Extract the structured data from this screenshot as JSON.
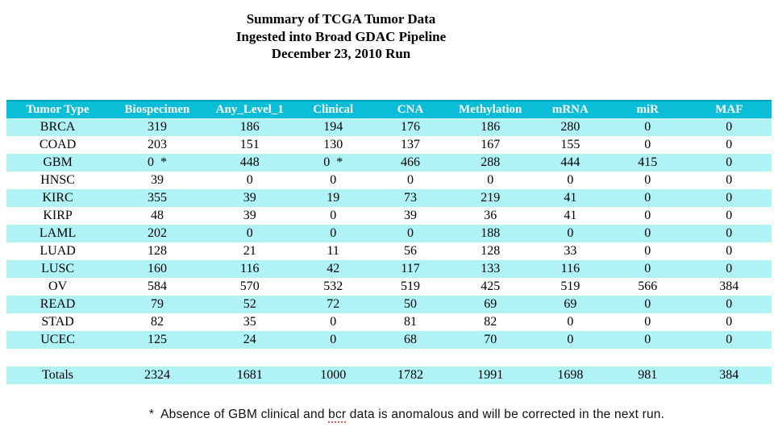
{
  "title": {
    "line1": "Summary of TCGA Tumor Data",
    "line2": "Ingested into Broad GDAC Pipeline",
    "line3": "December 23, 2010 Run"
  },
  "table": {
    "columns": [
      "Tumor Type",
      "Biospecimen",
      "Any_Level_1",
      "Clinical",
      "CNA",
      "Methylation",
      "mRNA",
      "miR",
      "MAF"
    ],
    "column_widths_pct": [
      13.4,
      12.6,
      11.6,
      10.2,
      10.0,
      10.9,
      10.0,
      10.2,
      11.1
    ],
    "rows": [
      {
        "tumor_type": "BRCA",
        "values": [
          "319",
          "186",
          "194",
          "176",
          "186",
          "280",
          "0",
          "0"
        ],
        "highlight": true
      },
      {
        "tumor_type": "COAD",
        "values": [
          "203",
          "151",
          "130",
          "137",
          "167",
          "155",
          "0",
          "0"
        ],
        "highlight": false
      },
      {
        "tumor_type": "GBM",
        "values": [
          "0  *",
          "448",
          "0  *",
          "466",
          "288",
          "444",
          "415",
          "0"
        ],
        "highlight": true
      },
      {
        "tumor_type": "HNSC",
        "values": [
          "39",
          "0",
          "0",
          "0",
          "0",
          "0",
          "0",
          "0"
        ],
        "highlight": false
      },
      {
        "tumor_type": "KIRC",
        "values": [
          "355",
          "39",
          "19",
          "73",
          "219",
          "41",
          "0",
          "0"
        ],
        "highlight": true
      },
      {
        "tumor_type": "KIRP",
        "values": [
          "48",
          "39",
          "0",
          "39",
          "36",
          "41",
          "0",
          "0"
        ],
        "highlight": false
      },
      {
        "tumor_type": "LAML",
        "values": [
          "202",
          "0",
          "0",
          "0",
          "188",
          "0",
          "0",
          "0"
        ],
        "highlight": true
      },
      {
        "tumor_type": "LUAD",
        "values": [
          "128",
          "21",
          "11",
          "56",
          "128",
          "33",
          "0",
          "0"
        ],
        "highlight": false
      },
      {
        "tumor_type": "LUSC",
        "values": [
          "160",
          "116",
          "42",
          "117",
          "133",
          "116",
          "0",
          "0"
        ],
        "highlight": true
      },
      {
        "tumor_type": "OV",
        "values": [
          "584",
          "570",
          "532",
          "519",
          "425",
          "519",
          "566",
          "384"
        ],
        "highlight": false
      },
      {
        "tumor_type": "READ",
        "values": [
          "79",
          "52",
          "72",
          "50",
          "69",
          "69",
          "0",
          "0"
        ],
        "highlight": true
      },
      {
        "tumor_type": "STAD",
        "values": [
          "82",
          "35",
          "0",
          "81",
          "82",
          "0",
          "0",
          "0"
        ],
        "highlight": false
      },
      {
        "tumor_type": "UCEC",
        "values": [
          "125",
          "24",
          "0",
          "68",
          "70",
          "0",
          "0",
          "0"
        ],
        "highlight": true
      }
    ],
    "totals": {
      "label": "Totals",
      "values": [
        "2324",
        "1681",
        "1000",
        "1782",
        "1991",
        "1698",
        "981",
        "384"
      ]
    }
  },
  "footnote": {
    "asterisk": "*",
    "text_before": "Absence of GBM clinical and ",
    "misspelled_word": "bcr",
    "text_after": " data is anomalous and will be corrected in the next run."
  },
  "colors": {
    "header_bg": "#0bbdd6",
    "header_top_border": "#009fba",
    "row_highlight": "#b0f3f7",
    "header_text": "#ffffff",
    "body_text": "#000000",
    "spellcheck_underline": "#e05b5b"
  }
}
